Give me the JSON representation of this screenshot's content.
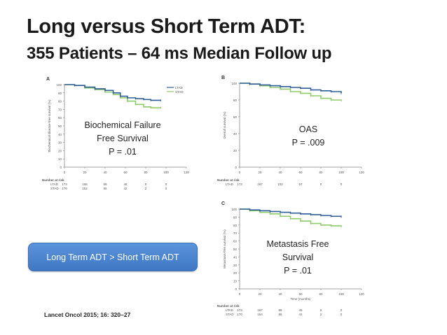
{
  "slide": {
    "title": "Long versus Short Term ADT:",
    "subtitle": "355 Patients – 64 ms Median Follow up",
    "callout_button": "Long Term ADT > Short Term ADT",
    "citation": "Lancet Oncol 2015; 16: 320–27"
  },
  "overlays": {
    "bfs": {
      "line1": "Biochemical Failure",
      "line2": "Free Survival",
      "line3": "P = .01"
    },
    "oas": {
      "line1": "OAS",
      "line2": "P = .009"
    },
    "mfs": {
      "line1": "Metastasis Free",
      "line2": "Survival",
      "line3": "P = .01"
    }
  },
  "colors": {
    "ltad": "#2f5d9a",
    "stad": "#8ecb6a",
    "button": "#4a85d1"
  },
  "chart_data": [
    {
      "type": "line",
      "panel": "A",
      "ylabel": "Biochemical disease-free survival (%)",
      "xticks": [
        0,
        20,
        40,
        60,
        80,
        100,
        120
      ],
      "yticks": [
        0,
        10,
        20,
        30,
        40,
        50,
        60,
        70,
        80,
        90,
        100
      ],
      "xlim": [
        0,
        120
      ],
      "ylim": [
        0,
        100
      ],
      "legend": [
        "LTAD",
        "STAD"
      ],
      "series": [
        {
          "name": "LTAD",
          "x": [
            0,
            10,
            20,
            30,
            40,
            48,
            55,
            62,
            70,
            78,
            85,
            95
          ],
          "y": [
            100,
            99,
            97,
            95,
            93,
            90,
            86,
            84,
            83,
            82,
            81,
            81
          ]
        },
        {
          "name": "STAD",
          "x": [
            0,
            10,
            20,
            30,
            40,
            48,
            55,
            62,
            70,
            78,
            85,
            95
          ],
          "y": [
            100,
            99,
            96,
            94,
            91,
            88,
            84,
            80,
            76,
            73,
            72,
            72
          ]
        }
      ],
      "risk_table": {
        "label": "Number at risk",
        "rows": [
          {
            "name": "LTAD",
            "values": [
              "173",
              "166",
              "58",
              "46",
              "0",
              "0"
            ]
          },
          {
            "name": "STAD",
            "values": [
              "170",
              "152",
              "86",
              "42",
              "2",
              "0"
            ]
          }
        ]
      }
    },
    {
      "type": "line",
      "panel": "B",
      "ylabel": "Overall survival (%)",
      "xticks": [
        0,
        20,
        40,
        60,
        80,
        100,
        120
      ],
      "yticks": [
        0,
        20,
        40,
        60,
        80,
        100
      ],
      "xlim": [
        0,
        120
      ],
      "ylim": [
        0,
        100
      ],
      "series": [
        {
          "name": "LTAD",
          "x": [
            0,
            10,
            20,
            30,
            40,
            50,
            60,
            70,
            80,
            90,
            100
          ],
          "y": [
            100,
            99,
            98,
            97,
            96,
            95,
            94,
            92,
            91,
            90,
            88
          ]
        },
        {
          "name": "STAD",
          "x": [
            0,
            10,
            20,
            30,
            40,
            50,
            60,
            70,
            80,
            90,
            100
          ],
          "y": [
            100,
            99,
            97,
            95,
            93,
            90,
            88,
            85,
            82,
            80,
            79
          ]
        }
      ],
      "risk_table": {
        "label": "Number at risk",
        "rows": [
          {
            "name": "LTAD",
            "values": [
              "173",
              "167",
              "102",
              "57",
              "0",
              "0"
            ]
          }
        ]
      }
    },
    {
      "type": "line",
      "panel": "C",
      "ylabel": "Metastasis-free survival (%)",
      "xlabel": "Time (months)",
      "xticks": [
        0,
        20,
        40,
        60,
        80,
        100,
        120
      ],
      "yticks": [
        0,
        10,
        20,
        30,
        40,
        50,
        60,
        70,
        80,
        90,
        100
      ],
      "xlim": [
        0,
        120
      ],
      "ylim": [
        0,
        100
      ],
      "series": [
        {
          "name": "LTAD",
          "x": [
            0,
            10,
            20,
            30,
            40,
            50,
            60,
            70,
            80,
            90,
            100
          ],
          "y": [
            100,
            99,
            98,
            97,
            96,
            95,
            94,
            93,
            92,
            91,
            90
          ]
        },
        {
          "name": "STAD",
          "x": [
            0,
            10,
            20,
            30,
            40,
            50,
            60,
            70,
            80,
            90,
            100
          ],
          "y": [
            100,
            98,
            96,
            94,
            91,
            88,
            85,
            82,
            80,
            79,
            78
          ]
        }
      ],
      "risk_table": {
        "label": "Number at risk",
        "rows": [
          {
            "name": "LTAD",
            "values": [
              "173",
              "167",
              "89",
              "45",
              "0",
              "0"
            ]
          },
          {
            "name": "STAD",
            "values": [
              "170",
              "154",
              "86",
              "41",
              "2",
              "0"
            ]
          }
        ]
      }
    }
  ]
}
